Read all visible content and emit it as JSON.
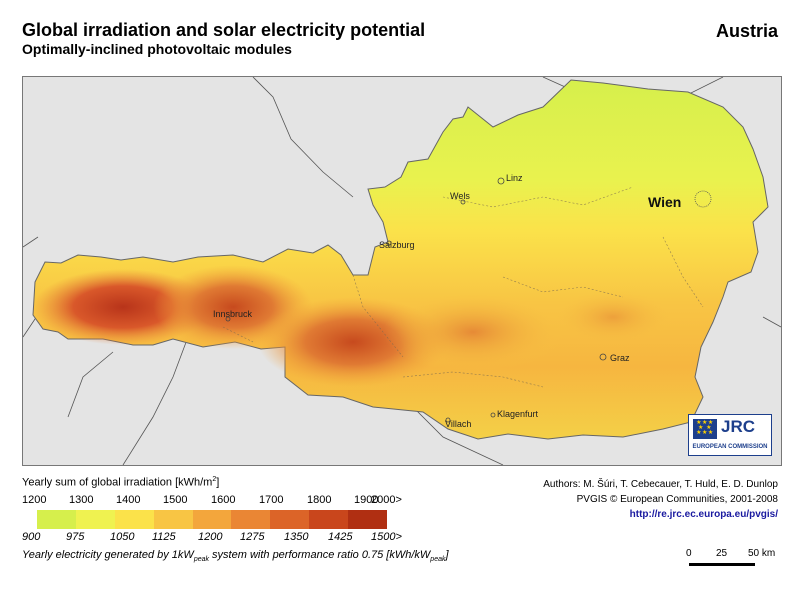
{
  "header": {
    "title": "Global irradiation and solar electricity potential",
    "subtitle": "Optimally-inclined photovoltaic modules",
    "country": "Austria"
  },
  "map": {
    "cities": {
      "linz": "Linz",
      "wels": "Wels",
      "wien": "Wien",
      "salzburg": "Salzburg",
      "innsbruck": "Innsbruck",
      "graz": "Graz",
      "klagenfurt": "Klagenfurt",
      "villach": "Villach"
    },
    "colors": {
      "background": "#e4e4e4",
      "border": "#777777"
    }
  },
  "logo": {
    "name": "JRC",
    "org": "EUROPEAN COMMISSION"
  },
  "legend": {
    "title": "Yearly sum of global irradiation [kWh/m",
    "title_sup": "2",
    "title_end": "]",
    "irradiation_ticks": [
      "1200",
      "1300",
      "1400",
      "1500",
      "1600",
      "1700",
      "1800",
      "1900",
      "2000>"
    ],
    "electricity_ticks": [
      "900",
      "975",
      "1050",
      "1125",
      "1200",
      "1275",
      "1350",
      "1425",
      "1500>"
    ],
    "colors": [
      "#d6ef4c",
      "#eff250",
      "#fbe24a",
      "#f8c544",
      "#f3a63c",
      "#ea8634",
      "#dc6428",
      "#c9461c",
      "#b02f12"
    ],
    "note_a": "Yearly electricity generated by 1kW",
    "note_sub": "peak",
    "note_b": " system with performance ratio 0.75 [kWh/kW",
    "note_sub2": "peak",
    "note_c": "]"
  },
  "credits": {
    "authors": "Authors: M. Šúri, T. Cebecauer, T. Huld, E. D. Dunlop",
    "copyright": "PVGIS © European Communities, 2001-2008",
    "url": "http://re.jrc.ec.europa.eu/pvgis/"
  },
  "scale": {
    "labels": [
      "0",
      "25",
      "50 km"
    ]
  }
}
